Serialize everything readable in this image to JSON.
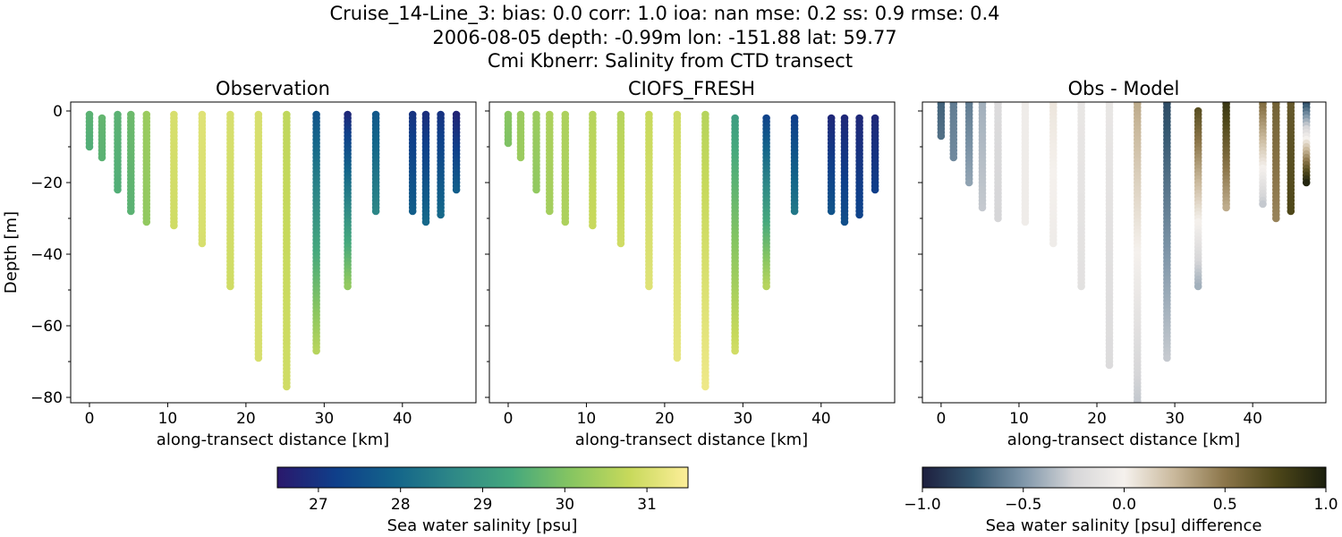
{
  "suptitle": {
    "line1": "Cruise_14-Line_3: bias: 0.0  corr: 1.0  ioa: nan  mse: 0.2  ss: 0.9  rmse: 0.4",
    "line2": "2006-08-05 depth: -0.99m lon: -151.88 lat: 59.77",
    "line3": "Cmi Kbnerr: Salinity from CTD transect"
  },
  "chart_data": [
    {
      "type": "scatter",
      "title": "Observation",
      "xlabel": "along-transect distance [km]",
      "ylabel": "Depth [m]",
      "xlim": [
        -2.4,
        49.4
      ],
      "ylim": [
        -81.5,
        2.5
      ],
      "xticks": [
        0,
        10,
        20,
        30,
        40
      ],
      "yticks": [
        0,
        -20,
        -40,
        -60,
        -80
      ],
      "colormap": "haline",
      "vmin": 26.5,
      "vmax": 31.5,
      "profiles": [
        {
          "x": 0.0,
          "ztop": -1,
          "zbot": -10,
          "v0": 29.6,
          "v1": 29.5
        },
        {
          "x": 1.6,
          "ztop": -2,
          "zbot": -13,
          "v0": 29.7,
          "v1": 29.6
        },
        {
          "x": 3.6,
          "ztop": -1,
          "zbot": -22,
          "v0": 29.6,
          "v1": 29.5
        },
        {
          "x": 5.3,
          "ztop": -1,
          "zbot": -28,
          "v0": 29.8,
          "v1": 29.6
        },
        {
          "x": 7.3,
          "ztop": -1,
          "zbot": -31,
          "v0": 30.3,
          "v1": 30.2
        },
        {
          "x": 10.8,
          "ztop": -1,
          "zbot": -32,
          "v0": 31.0,
          "v1": 30.9
        },
        {
          "x": 14.4,
          "ztop": -1,
          "zbot": -37,
          "v0": 31.1,
          "v1": 31.0
        },
        {
          "x": 18.0,
          "ztop": -1,
          "zbot": -49,
          "v0": 31.0,
          "v1": 30.9
        },
        {
          "x": 21.6,
          "ztop": -1,
          "zbot": -69,
          "v0": 31.0,
          "v1": 31.0
        },
        {
          "x": 25.2,
          "ztop": -1,
          "zbot": -77,
          "v0": 30.7,
          "v1": 30.9
        },
        {
          "x": 29.0,
          "ztop": -1,
          "zbot": -67,
          "v0": 27.6,
          "v1": 30.6
        },
        {
          "x": 33.0,
          "ztop": -1,
          "zbot": -49,
          "v0": 26.8,
          "v1": 30.2
        },
        {
          "x": 36.6,
          "ztop": -1,
          "zbot": -28,
          "v0": 27.7,
          "v1": 28.6
        },
        {
          "x": 41.3,
          "ztop": -1,
          "zbot": -28,
          "v0": 27.0,
          "v1": 27.8
        },
        {
          "x": 43.0,
          "ztop": -1,
          "zbot": -31,
          "v0": 26.9,
          "v1": 28.0
        },
        {
          "x": 44.9,
          "ztop": -1,
          "zbot": -29,
          "v0": 27.0,
          "v1": 28.0
        },
        {
          "x": 46.9,
          "ztop": -1,
          "zbot": -22,
          "v0": 26.7,
          "v1": 27.8
        }
      ]
    },
    {
      "type": "scatter",
      "title": "CIOFS_FRESH",
      "xlabel": "along-transect distance [km]",
      "xlim": [
        -2.4,
        49.4
      ],
      "ylim": [
        -81.5,
        2.5
      ],
      "xticks": [
        0,
        10,
        20,
        30,
        40
      ],
      "colormap": "haline",
      "vmin": 26.5,
      "vmax": 31.5,
      "profiles": [
        {
          "x": 0.0,
          "ztop": -1,
          "zbot": -9,
          "v0": 30.1,
          "v1": 30.0
        },
        {
          "x": 1.6,
          "ztop": -1,
          "zbot": -13,
          "v0": 30.3,
          "v1": 30.3
        },
        {
          "x": 3.6,
          "ztop": -1,
          "zbot": -22,
          "v0": 30.3,
          "v1": 30.2
        },
        {
          "x": 5.3,
          "ztop": -1,
          "zbot": -28,
          "v0": 30.5,
          "v1": 30.4
        },
        {
          "x": 7.3,
          "ztop": -1,
          "zbot": -31,
          "v0": 30.5,
          "v1": 30.5
        },
        {
          "x": 10.8,
          "ztop": -1,
          "zbot": -32,
          "v0": 30.6,
          "v1": 30.8
        },
        {
          "x": 14.4,
          "ztop": -1,
          "zbot": -37,
          "v0": 30.6,
          "v1": 30.9
        },
        {
          "x": 18.0,
          "ztop": -1,
          "zbot": -49,
          "v0": 30.8,
          "v1": 31.1
        },
        {
          "x": 21.6,
          "ztop": -1,
          "zbot": -69,
          "v0": 30.9,
          "v1": 31.2
        },
        {
          "x": 25.2,
          "ztop": -1,
          "zbot": -77,
          "v0": 30.6,
          "v1": 31.3
        },
        {
          "x": 29.0,
          "ztop": -2,
          "zbot": -67,
          "v0": 29.1,
          "v1": 30.9
        },
        {
          "x": 33.0,
          "ztop": -2,
          "zbot": -49,
          "v0": 27.3,
          "v1": 30.6
        },
        {
          "x": 36.6,
          "ztop": -2,
          "zbot": -28,
          "v0": 27.2,
          "v1": 28.3
        },
        {
          "x": 41.3,
          "ztop": -2,
          "zbot": -28,
          "v0": 26.8,
          "v1": 27.6
        },
        {
          "x": 43.0,
          "ztop": -2,
          "zbot": -31,
          "v0": 26.8,
          "v1": 27.5
        },
        {
          "x": 44.9,
          "ztop": -2,
          "zbot": -29,
          "v0": 26.8,
          "v1": 27.3
        },
        {
          "x": 46.9,
          "ztop": -2,
          "zbot": -22,
          "v0": 26.8,
          "v1": 27.2
        }
      ]
    },
    {
      "type": "scatter",
      "title": "Obs - Model",
      "xlabel": "along-transect distance [km]",
      "xlim": [
        -2.4,
        49.4
      ],
      "ylim": [
        -81.5,
        2.5
      ],
      "xticks": [
        0,
        10,
        20,
        30,
        40
      ],
      "colormap": "diff",
      "vmin": -1.0,
      "vmax": 1.0,
      "profiles": [
        {
          "x": 0.0,
          "ztop": 2,
          "zbot": -7,
          "v0": -0.7,
          "v1": -0.65
        },
        {
          "x": 1.6,
          "ztop": 2,
          "zbot": -13,
          "v0": -0.6,
          "v1": -0.55
        },
        {
          "x": 3.6,
          "ztop": 2,
          "zbot": -20,
          "v0": -0.6,
          "v1": -0.45
        },
        {
          "x": 5.3,
          "ztop": 2,
          "zbot": -27,
          "v0": -0.4,
          "v1": -0.3
        },
        {
          "x": 7.3,
          "ztop": 2,
          "zbot": -30,
          "v0": -0.2,
          "v1": -0.25
        },
        {
          "x": 10.8,
          "ztop": 2,
          "zbot": -31,
          "v0": -0.05,
          "v1": -0.05
        },
        {
          "x": 14.4,
          "ztop": 2,
          "zbot": -37,
          "v0": 0.05,
          "v1": -0.05
        },
        {
          "x": 18.0,
          "ztop": 2,
          "zbot": -49,
          "v0": -0.1,
          "v1": -0.15
        },
        {
          "x": 21.6,
          "ztop": 2,
          "zbot": -71,
          "v0": -0.1,
          "v1": -0.2
        },
        {
          "x": 25.2,
          "ztop": 2,
          "zbot": -81,
          "v0": 0.3,
          "v1": -0.3
        },
        {
          "x": 29.0,
          "ztop": 2,
          "zbot": -69,
          "v0": -0.8,
          "v1": -0.3
        },
        {
          "x": 33.0,
          "ztop": 0,
          "zbot": -49,
          "v0": 0.7,
          "v1": -0.4
        },
        {
          "x": 36.6,
          "ztop": 2,
          "zbot": -27,
          "v0": 0.85,
          "v1": 0.3
        },
        {
          "x": 41.3,
          "ztop": 2,
          "zbot": -26,
          "v0": 0.55,
          "v1": -0.3
        },
        {
          "x": 43.0,
          "ztop": 2,
          "zbot": -30,
          "v0": 0.6,
          "v1": 0.45
        },
        {
          "x": 44.9,
          "ztop": 2,
          "zbot": -28,
          "v0": 0.65,
          "v1": 0.75
        },
        {
          "x": 46.9,
          "ztop": 2,
          "zbot": -20,
          "v0": -0.8,
          "v1": 0.95
        }
      ]
    }
  ],
  "colorbars": [
    {
      "label": "Sea water salinity [psu]",
      "vmin": 26.5,
      "vmax": 31.5,
      "ticks": [
        "27",
        "28",
        "29",
        "30",
        "31"
      ],
      "tickvals": [
        27,
        28,
        29,
        30,
        31
      ],
      "colormap": "haline"
    },
    {
      "label": "Sea water salinity [psu] difference",
      "vmin": -1.0,
      "vmax": 1.0,
      "ticks": [
        "−1.0",
        "−0.5",
        "0.0",
        "0.5",
        "1.0"
      ],
      "tickvals": [
        -1.0,
        -0.5,
        0.0,
        0.5,
        1.0
      ],
      "colormap": "diff"
    }
  ],
  "colors": {
    "haline": [
      "#2a186c",
      "#0f3f8a",
      "#13648a",
      "#2e8887",
      "#45a87d",
      "#86c561",
      "#c7d95b",
      "#fdee99"
    ],
    "diff": [
      "#1d1f3e",
      "#33566f",
      "#7f96a9",
      "#d6d6d8",
      "#f5f1ed",
      "#c9b89b",
      "#8b7549",
      "#4e4719",
      "#1b1f0e"
    ]
  }
}
